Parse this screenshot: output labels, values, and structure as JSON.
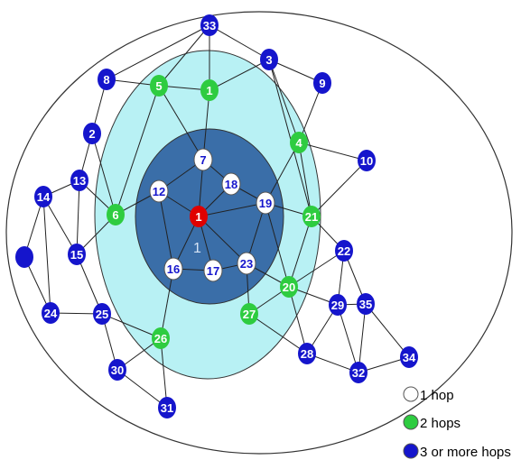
{
  "colors": {
    "hop1": "#ffffff",
    "hop2": "#2ecc40",
    "hop3": "#1515cc",
    "source": "#e00000",
    "outer_ring_fill": "#ffffff",
    "middle_ring_fill": "#b8f1f4",
    "inner_ring_fill": "#3a6ea8"
  },
  "center_ring_label": "1",
  "nodes": [
    {
      "id": "1",
      "hop": "source"
    },
    {
      "id": "7",
      "hop": "hop1"
    },
    {
      "id": "12",
      "hop": "hop1"
    },
    {
      "id": "18",
      "hop": "hop1"
    },
    {
      "id": "19",
      "hop": "hop1"
    },
    {
      "id": "16",
      "hop": "hop1"
    },
    {
      "id": "17",
      "hop": "hop1"
    },
    {
      "id": "23",
      "hop": "hop1"
    },
    {
      "id": "5",
      "hop": "hop2"
    },
    {
      "id": "1",
      "hop": "hop2"
    },
    {
      "id": "4",
      "hop": "hop2"
    },
    {
      "id": "6",
      "hop": "hop2"
    },
    {
      "id": "21",
      "hop": "hop2"
    },
    {
      "id": "20",
      "hop": "hop2"
    },
    {
      "id": "27",
      "hop": "hop2"
    },
    {
      "id": "26",
      "hop": "hop2"
    },
    {
      "id": "33",
      "hop": "hop3"
    },
    {
      "id": "8",
      "hop": "hop3"
    },
    {
      "id": "3",
      "hop": "hop3"
    },
    {
      "id": "9",
      "hop": "hop3"
    },
    {
      "id": "2",
      "hop": "hop3"
    },
    {
      "id": "10",
      "hop": "hop3"
    },
    {
      "id": "13",
      "hop": "hop3"
    },
    {
      "id": "14",
      "hop": "hop3"
    },
    {
      "id": "15",
      "hop": "hop3"
    },
    {
      "id": "",
      "hop": "hop3"
    },
    {
      "id": "24",
      "hop": "hop3"
    },
    {
      "id": "25",
      "hop": "hop3"
    },
    {
      "id": "22",
      "hop": "hop3"
    },
    {
      "id": "29",
      "hop": "hop3"
    },
    {
      "id": "35",
      "hop": "hop3"
    },
    {
      "id": "28",
      "hop": "hop3"
    },
    {
      "id": "32",
      "hop": "hop3"
    },
    {
      "id": "34",
      "hop": "hop3"
    },
    {
      "id": "30",
      "hop": "hop3"
    },
    {
      "id": "31",
      "hop": "hop3"
    }
  ],
  "edges": [
    [
      "33",
      "5"
    ],
    [
      "33",
      "1b"
    ],
    [
      "33",
      "3"
    ],
    [
      "33",
      "8"
    ],
    [
      "5",
      "8"
    ],
    [
      "5",
      "1b"
    ],
    [
      "5",
      "7"
    ],
    [
      "5",
      "6"
    ],
    [
      "1b",
      "3"
    ],
    [
      "1b",
      "7"
    ],
    [
      "3",
      "9"
    ],
    [
      "3",
      "4"
    ],
    [
      "3",
      "21"
    ],
    [
      "9",
      "4"
    ],
    [
      "4",
      "10"
    ],
    [
      "4",
      "21"
    ],
    [
      "4",
      "19"
    ],
    [
      "10",
      "21"
    ],
    [
      "8",
      "2"
    ],
    [
      "2",
      "6"
    ],
    [
      "2",
      "13"
    ],
    [
      "13",
      "15"
    ],
    [
      "13",
      "14"
    ],
    [
      "13",
      "6"
    ],
    [
      "14",
      "15"
    ],
    [
      "14",
      "blank"
    ],
    [
      "14",
      "24"
    ],
    [
      "15",
      "25"
    ],
    [
      "15",
      "6"
    ],
    [
      "6",
      "12"
    ],
    [
      "blank",
      "24"
    ],
    [
      "24",
      "25"
    ],
    [
      "25",
      "30"
    ],
    [
      "25",
      "26"
    ],
    [
      "26",
      "16"
    ],
    [
      "26",
      "30"
    ],
    [
      "26",
      "31"
    ],
    [
      "30",
      "31"
    ],
    [
      "12",
      "7"
    ],
    [
      "12",
      "16"
    ],
    [
      "12",
      "1"
    ],
    [
      "7",
      "18"
    ],
    [
      "7",
      "1"
    ],
    [
      "18",
      "19"
    ],
    [
      "18",
      "1"
    ],
    [
      "19",
      "1"
    ],
    [
      "19",
      "21"
    ],
    [
      "19",
      "20"
    ],
    [
      "1",
      "16"
    ],
    [
      "1",
      "17"
    ],
    [
      "1",
      "23"
    ],
    [
      "16",
      "17"
    ],
    [
      "17",
      "23"
    ],
    [
      "23",
      "27"
    ],
    [
      "23",
      "20"
    ],
    [
      "23",
      "19"
    ],
    [
      "20",
      "21"
    ],
    [
      "20",
      "22"
    ],
    [
      "20",
      "28"
    ],
    [
      "20",
      "27"
    ],
    [
      "20",
      "29"
    ],
    [
      "21",
      "22"
    ],
    [
      "22",
      "29"
    ],
    [
      "22",
      "35"
    ],
    [
      "29",
      "35"
    ],
    [
      "29",
      "28"
    ],
    [
      "29",
      "32"
    ],
    [
      "35",
      "32"
    ],
    [
      "35",
      "34"
    ],
    [
      "28",
      "32"
    ],
    [
      "32",
      "34"
    ],
    [
      "27",
      "28"
    ]
  ],
  "legend": [
    {
      "hop": "hop1",
      "label": "1 hop"
    },
    {
      "hop": "hop2",
      "label": "2 hops"
    },
    {
      "hop": "hop3",
      "label": "3 or more hops"
    }
  ]
}
